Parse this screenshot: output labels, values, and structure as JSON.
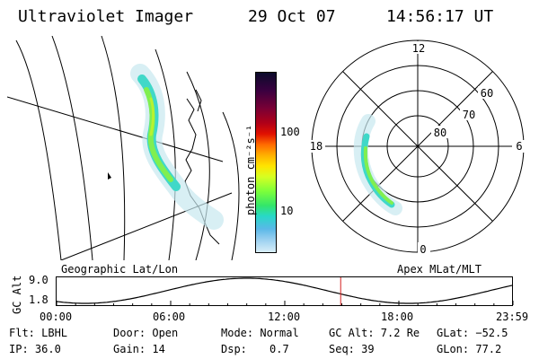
{
  "header": {
    "instrument": "Ultraviolet Imager",
    "date": "29 Oct 07",
    "time": "14:56:17 UT"
  },
  "left_panel": {
    "caption": "Geographic Lat/Lon",
    "icon": "geographic-map-icon"
  },
  "colorbar": {
    "unit_label": "photon cm⁻²s⁻¹",
    "ticks": [
      "100",
      "10"
    ],
    "scale": "log",
    "colors": [
      "#0b0b2a",
      "#3a0040",
      "#7a0035",
      "#b00018",
      "#e01000",
      "#ff6a00",
      "#ffb000",
      "#ffe400",
      "#d6ff22",
      "#7dff3a",
      "#34e66a",
      "#28d8c8",
      "#5ab8e8",
      "#9ad0f0",
      "#d8eef8"
    ]
  },
  "right_panel": {
    "caption": "Apex MLat/MLT",
    "mlt_labels": [
      "12",
      "18",
      "6",
      "0"
    ],
    "mlat_labels": [
      "60",
      "70",
      "80"
    ],
    "icon": "polar-grid-icon"
  },
  "altitude_plot": {
    "ylabel": "GC Alt",
    "yticks": [
      "9.0",
      "1.8"
    ],
    "ylim": [
      1.8,
      9.0
    ],
    "xticks": [
      "00:00",
      "06:00",
      "12:00",
      "18:00",
      "23:59"
    ],
    "current_time_hours": 14.94,
    "marker_color": "#d42020"
  },
  "footer": {
    "row1": {
      "flt": "Flt: LBHL",
      "door": "Door: Open",
      "mode": "Mode: Normal",
      "gcalt": "GC Alt: 7.2 Re",
      "glat": "GLat: −52.5"
    },
    "row2": {
      "ip": "IP: 36.0",
      "gain": "Gain: 14",
      "dsp_label": "Dsp:",
      "dsp_value": "0.7",
      "seq": "Seq: 39",
      "glon": "GLon:  77.2"
    }
  }
}
